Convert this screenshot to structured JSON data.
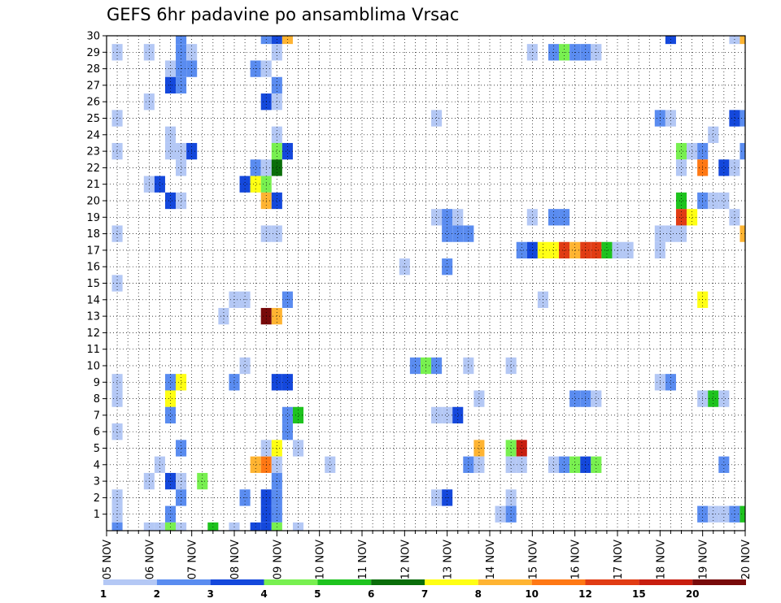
{
  "chart_data": {
    "type": "heatmap",
    "title": "GEFS 6hr padavine po ansamblima Vrsac",
    "xlabel": "",
    "ylabel": "",
    "x_ticks": [
      "05 NOV",
      "06 NOV",
      "07 NOV",
      "08 NOV",
      "09 NOV",
      "10 NOV",
      "11 NOV",
      "12 NOV",
      "13 NOV",
      "14 NOV",
      "15 NOV",
      "16 NOV",
      "17 NOV",
      "18 NOV",
      "19 NOV",
      "20 NOV"
    ],
    "y_ticks": [
      "1",
      "2",
      "3",
      "4",
      "5",
      "6",
      "7",
      "8",
      "9",
      "10",
      "11",
      "12",
      "13",
      "14",
      "15",
      "16",
      "17",
      "18",
      "19",
      "20",
      "21",
      "22",
      "23",
      "24",
      "25",
      "26",
      "27",
      "28",
      "29",
      "30"
    ],
    "x_range": [
      "05 NOV 00Z",
      "20 NOV 00Z"
    ],
    "x_step": "6hr",
    "y_range": [
      0,
      30
    ],
    "grid": true,
    "colorbar": {
      "position": "bottom",
      "labels": [
        "1",
        "2",
        "3",
        "4",
        "5",
        "6",
        "7",
        "8",
        "10",
        "12",
        "15",
        "20"
      ],
      "colors": [
        "#b4c8f5",
        "#5a8cf0",
        "#1448dc",
        "#78f050",
        "#1ec31e",
        "#0a6e0a",
        "#ffff14",
        "#ffb432",
        "#ff7814",
        "#e13c14",
        "#c81e0f",
        "#780a0a"
      ]
    },
    "cells": [
      {
        "member": 30,
        "t": "06 NOV 18Z",
        "color": "#5a8cf0"
      },
      {
        "member": 30,
        "t": "08 NOV 18Z",
        "color": "#5a8cf0"
      },
      {
        "member": 30,
        "t": "09 NOV 00Z",
        "color": "#1448dc"
      },
      {
        "member": 30,
        "t": "09 NOV 06Z",
        "color": "#ffb432"
      },
      {
        "member": 30,
        "t": "18 NOV 06Z",
        "color": "#1448dc"
      },
      {
        "member": 30,
        "t": "19 NOV 18Z",
        "color": "#b4c8f5"
      },
      {
        "member": 30,
        "t": "20 NOV 00Z",
        "color": "#ffb432"
      },
      {
        "member": 29,
        "t": "05 NOV 06Z",
        "color": "#b4c8f5"
      },
      {
        "member": 29,
        "t": "06 NOV 00Z",
        "color": "#b4c8f5"
      },
      {
        "member": 29,
        "t": "06 NOV 18Z",
        "color": "#5a8cf0"
      },
      {
        "member": 29,
        "t": "07 NOV 00Z",
        "color": "#b4c8f5"
      },
      {
        "member": 29,
        "t": "09 NOV 00Z",
        "color": "#b4c8f5"
      },
      {
        "member": 29,
        "t": "15 NOV 00Z",
        "color": "#b4c8f5"
      },
      {
        "member": 29,
        "t": "15 NOV 12Z",
        "color": "#5a8cf0"
      },
      {
        "member": 29,
        "t": "15 NOV 18Z",
        "color": "#78f050"
      },
      {
        "member": 29,
        "t": "16 NOV 00Z",
        "color": "#5a8cf0"
      },
      {
        "member": 29,
        "t": "16 NOV 06Z",
        "color": "#5a8cf0"
      },
      {
        "member": 29,
        "t": "16 NOV 12Z",
        "color": "#b4c8f5"
      },
      {
        "member": 28,
        "t": "06 NOV 12Z",
        "color": "#b4c8f5"
      },
      {
        "member": 28,
        "t": "06 NOV 18Z",
        "color": "#5a8cf0"
      },
      {
        "member": 28,
        "t": "07 NOV 00Z",
        "color": "#5a8cf0"
      },
      {
        "member": 28,
        "t": "08 NOV 12Z",
        "color": "#5a8cf0"
      },
      {
        "member": 28,
        "t": "08 NOV 18Z",
        "color": "#b4c8f5"
      },
      {
        "member": 27,
        "t": "06 NOV 12Z",
        "color": "#1448dc"
      },
      {
        "member": 27,
        "t": "06 NOV 18Z",
        "color": "#5a8cf0"
      },
      {
        "member": 27,
        "t": "09 NOV 00Z",
        "color": "#5a8cf0"
      },
      {
        "member": 26,
        "t": "06 NOV 00Z",
        "color": "#b4c8f5"
      },
      {
        "member": 26,
        "t": "08 NOV 18Z",
        "color": "#1448dc"
      },
      {
        "member": 26,
        "t": "09 NOV 00Z",
        "color": "#b4c8f5"
      },
      {
        "member": 25,
        "t": "05 NOV 06Z",
        "color": "#b4c8f5"
      },
      {
        "member": 25,
        "t": "12 NOV 18Z",
        "color": "#b4c8f5"
      },
      {
        "member": 25,
        "t": "18 NOV 00Z",
        "color": "#5a8cf0"
      },
      {
        "member": 25,
        "t": "18 NOV 06Z",
        "color": "#b4c8f5"
      },
      {
        "member": 25,
        "t": "19 NOV 18Z",
        "color": "#1448dc"
      },
      {
        "member": 25,
        "t": "20 NOV 00Z",
        "color": "#5a8cf0"
      },
      {
        "member": 24,
        "t": "06 NOV 12Z",
        "color": "#b4c8f5"
      },
      {
        "member": 24,
        "t": "09 NOV 00Z",
        "color": "#b4c8f5"
      },
      {
        "member": 24,
        "t": "19 NOV 06Z",
        "color": "#b4c8f5"
      },
      {
        "member": 23,
        "t": "05 NOV 06Z",
        "color": "#b4c8f5"
      },
      {
        "member": 23,
        "t": "06 NOV 12Z",
        "color": "#b4c8f5"
      },
      {
        "member": 23,
        "t": "06 NOV 18Z",
        "color": "#b4c8f5"
      },
      {
        "member": 23,
        "t": "07 NOV 00Z",
        "color": "#1448dc"
      },
      {
        "member": 23,
        "t": "09 NOV 00Z",
        "color": "#78f050"
      },
      {
        "member": 23,
        "t": "09 NOV 06Z",
        "color": "#1448dc"
      },
      {
        "member": 23,
        "t": "18 NOV 12Z",
        "color": "#78f050"
      },
      {
        "member": 23,
        "t": "18 NOV 18Z",
        "color": "#b4c8f5"
      },
      {
        "member": 23,
        "t": "19 NOV 00Z",
        "color": "#5a8cf0"
      },
      {
        "member": 23,
        "t": "20 NOV 00Z",
        "color": "#5a8cf0"
      },
      {
        "member": 22,
        "t": "06 NOV 18Z",
        "color": "#b4c8f5"
      },
      {
        "member": 22,
        "t": "08 NOV 12Z",
        "color": "#5a8cf0"
      },
      {
        "member": 22,
        "t": "08 NOV 18Z",
        "color": "#b4c8f5"
      },
      {
        "member": 22,
        "t": "09 NOV 00Z",
        "color": "#0a6e0a"
      },
      {
        "member": 22,
        "t": "18 NOV 12Z",
        "color": "#b4c8f5"
      },
      {
        "member": 22,
        "t": "19 NOV 00Z",
        "color": "#ff7814"
      },
      {
        "member": 22,
        "t": "19 NOV 12Z",
        "color": "#1448dc"
      },
      {
        "member": 22,
        "t": "19 NOV 18Z",
        "color": "#b4c8f5"
      },
      {
        "member": 21,
        "t": "06 NOV 00Z",
        "color": "#b4c8f5"
      },
      {
        "member": 21,
        "t": "06 NOV 06Z",
        "color": "#1448dc"
      },
      {
        "member": 21,
        "t": "08 NOV 06Z",
        "color": "#1448dc"
      },
      {
        "member": 21,
        "t": "08 NOV 12Z",
        "color": "#ffff14"
      },
      {
        "member": 21,
        "t": "08 NOV 18Z",
        "color": "#78f050"
      },
      {
        "member": 20,
        "t": "06 NOV 12Z",
        "color": "#1448dc"
      },
      {
        "member": 20,
        "t": "06 NOV 18Z",
        "color": "#b4c8f5"
      },
      {
        "member": 20,
        "t": "08 NOV 18Z",
        "color": "#ffb432"
      },
      {
        "member": 20,
        "t": "09 NOV 00Z",
        "color": "#1448dc"
      },
      {
        "member": 20,
        "t": "18 NOV 12Z",
        "color": "#1ec31e"
      },
      {
        "member": 20,
        "t": "19 NOV 00Z",
        "color": "#5a8cf0"
      },
      {
        "member": 20,
        "t": "19 NOV 06Z",
        "color": "#b4c8f5"
      },
      {
        "member": 20,
        "t": "19 NOV 12Z",
        "color": "#b4c8f5"
      },
      {
        "member": 19,
        "t": "12 NOV 18Z",
        "color": "#b4c8f5"
      },
      {
        "member": 19,
        "t": "13 NOV 00Z",
        "color": "#5a8cf0"
      },
      {
        "member": 19,
        "t": "13 NOV 06Z",
        "color": "#b4c8f5"
      },
      {
        "member": 19,
        "t": "15 NOV 00Z",
        "color": "#b4c8f5"
      },
      {
        "member": 19,
        "t": "15 NOV 12Z",
        "color": "#5a8cf0"
      },
      {
        "member": 19,
        "t": "15 NOV 18Z",
        "color": "#5a8cf0"
      },
      {
        "member": 19,
        "t": "18 NOV 12Z",
        "color": "#e13c14"
      },
      {
        "member": 19,
        "t": "18 NOV 18Z",
        "color": "#ffff14"
      },
      {
        "member": 19,
        "t": "19 NOV 18Z",
        "color": "#b4c8f5"
      },
      {
        "member": 18,
        "t": "05 NOV 06Z",
        "color": "#b4c8f5"
      },
      {
        "member": 18,
        "t": "08 NOV 18Z",
        "color": "#b4c8f5"
      },
      {
        "member": 18,
        "t": "09 NOV 00Z",
        "color": "#b4c8f5"
      },
      {
        "member": 18,
        "t": "13 NOV 00Z",
        "color": "#5a8cf0"
      },
      {
        "member": 18,
        "t": "13 NOV 06Z",
        "color": "#5a8cf0"
      },
      {
        "member": 18,
        "t": "13 NOV 12Z",
        "color": "#5a8cf0"
      },
      {
        "member": 18,
        "t": "18 NOV 00Z",
        "color": "#b4c8f5"
      },
      {
        "member": 18,
        "t": "18 NOV 06Z",
        "color": "#b4c8f5"
      },
      {
        "member": 18,
        "t": "18 NOV 12Z",
        "color": "#b4c8f5"
      },
      {
        "member": 18,
        "t": "20 NOV 00Z",
        "color": "#ffb432"
      },
      {
        "member": 17,
        "t": "14 NOV 18Z",
        "color": "#5a8cf0"
      },
      {
        "member": 17,
        "t": "15 NOV 00Z",
        "color": "#1448dc"
      },
      {
        "member": 17,
        "t": "15 NOV 06Z",
        "color": "#ffff14"
      },
      {
        "member": 17,
        "t": "15 NOV 12Z",
        "color": "#ffff14"
      },
      {
        "member": 17,
        "t": "15 NOV 18Z",
        "color": "#e13c14"
      },
      {
        "member": 17,
        "t": "16 NOV 00Z",
        "color": "#ffb432"
      },
      {
        "member": 17,
        "t": "16 NOV 06Z",
        "color": "#e13c14"
      },
      {
        "member": 17,
        "t": "16 NOV 12Z",
        "color": "#e13c14"
      },
      {
        "member": 17,
        "t": "16 NOV 18Z",
        "color": "#1ec31e"
      },
      {
        "member": 17,
        "t": "17 NOV 00Z",
        "color": "#b4c8f5"
      },
      {
        "member": 17,
        "t": "17 NOV 06Z",
        "color": "#b4c8f5"
      },
      {
        "member": 17,
        "t": "18 NOV 00Z",
        "color": "#b4c8f5"
      },
      {
        "member": 16,
        "t": "12 NOV 00Z",
        "color": "#b4c8f5"
      },
      {
        "member": 16,
        "t": "13 NOV 00Z",
        "color": "#5a8cf0"
      },
      {
        "member": 15,
        "t": "05 NOV 06Z",
        "color": "#b4c8f5"
      },
      {
        "member": 14,
        "t": "08 NOV 00Z",
        "color": "#b4c8f5"
      },
      {
        "member": 14,
        "t": "08 NOV 06Z",
        "color": "#b4c8f5"
      },
      {
        "member": 14,
        "t": "09 NOV 06Z",
        "color": "#5a8cf0"
      },
      {
        "member": 14,
        "t": "15 NOV 06Z",
        "color": "#b4c8f5"
      },
      {
        "member": 14,
        "t": "19 NOV 00Z",
        "color": "#ffff14"
      },
      {
        "member": 13,
        "t": "07 NOV 18Z",
        "color": "#b4c8f5"
      },
      {
        "member": 13,
        "t": "08 NOV 18Z",
        "color": "#780a0a"
      },
      {
        "member": 13,
        "t": "09 NOV 00Z",
        "color": "#ffb432"
      },
      {
        "member": 10,
        "t": "08 NOV 06Z",
        "color": "#b4c8f5"
      },
      {
        "member": 10,
        "t": "12 NOV 06Z",
        "color": "#5a8cf0"
      },
      {
        "member": 10,
        "t": "12 NOV 12Z",
        "color": "#78f050"
      },
      {
        "member": 10,
        "t": "12 NOV 18Z",
        "color": "#5a8cf0"
      },
      {
        "member": 10,
        "t": "13 NOV 12Z",
        "color": "#b4c8f5"
      },
      {
        "member": 10,
        "t": "14 NOV 12Z",
        "color": "#b4c8f5"
      },
      {
        "member": 9,
        "t": "05 NOV 06Z",
        "color": "#b4c8f5"
      },
      {
        "member": 9,
        "t": "06 NOV 12Z",
        "color": "#5a8cf0"
      },
      {
        "member": 9,
        "t": "06 NOV 18Z",
        "color": "#ffff14"
      },
      {
        "member": 9,
        "t": "08 NOV 00Z",
        "color": "#5a8cf0"
      },
      {
        "member": 9,
        "t": "09 NOV 00Z",
        "color": "#1448dc"
      },
      {
        "member": 9,
        "t": "09 NOV 06Z",
        "color": "#1448dc"
      },
      {
        "member": 9,
        "t": "18 NOV 00Z",
        "color": "#b4c8f5"
      },
      {
        "member": 9,
        "t": "18 NOV 06Z",
        "color": "#5a8cf0"
      },
      {
        "member": 8,
        "t": "05 NOV 06Z",
        "color": "#b4c8f5"
      },
      {
        "member": 8,
        "t": "06 NOV 12Z",
        "color": "#ffff14"
      },
      {
        "member": 8,
        "t": "13 NOV 18Z",
        "color": "#b4c8f5"
      },
      {
        "member": 8,
        "t": "16 NOV 00Z",
        "color": "#5a8cf0"
      },
      {
        "member": 8,
        "t": "16 NOV 06Z",
        "color": "#5a8cf0"
      },
      {
        "member": 8,
        "t": "16 NOV 12Z",
        "color": "#b4c8f5"
      },
      {
        "member": 8,
        "t": "19 NOV 00Z",
        "color": "#b4c8f5"
      },
      {
        "member": 8,
        "t": "19 NOV 06Z",
        "color": "#1ec31e"
      },
      {
        "member": 8,
        "t": "19 NOV 12Z",
        "color": "#b4c8f5"
      },
      {
        "member": 7,
        "t": "06 NOV 12Z",
        "color": "#5a8cf0"
      },
      {
        "member": 7,
        "t": "09 NOV 06Z",
        "color": "#5a8cf0"
      },
      {
        "member": 7,
        "t": "09 NOV 12Z",
        "color": "#1ec31e"
      },
      {
        "member": 7,
        "t": "12 NOV 18Z",
        "color": "#b4c8f5"
      },
      {
        "member": 7,
        "t": "13 NOV 00Z",
        "color": "#b4c8f5"
      },
      {
        "member": 7,
        "t": "13 NOV 06Z",
        "color": "#1448dc"
      },
      {
        "member": 6,
        "t": "05 NOV 06Z",
        "color": "#b4c8f5"
      },
      {
        "member": 6,
        "t": "09 NOV 06Z",
        "color": "#5a8cf0"
      },
      {
        "member": 5,
        "t": "06 NOV 18Z",
        "color": "#5a8cf0"
      },
      {
        "member": 5,
        "t": "08 NOV 18Z",
        "color": "#b4c8f5"
      },
      {
        "member": 5,
        "t": "09 NOV 00Z",
        "color": "#ffff14"
      },
      {
        "member": 5,
        "t": "09 NOV 12Z",
        "color": "#b4c8f5"
      },
      {
        "member": 5,
        "t": "13 NOV 18Z",
        "color": "#ffb432"
      },
      {
        "member": 5,
        "t": "14 NOV 12Z",
        "color": "#78f050"
      },
      {
        "member": 5,
        "t": "14 NOV 18Z",
        "color": "#c81e0f"
      },
      {
        "member": 4,
        "t": "06 NOV 06Z",
        "color": "#b4c8f5"
      },
      {
        "member": 4,
        "t": "08 NOV 12Z",
        "color": "#ffb432"
      },
      {
        "member": 4,
        "t": "08 NOV 18Z",
        "color": "#ff7814"
      },
      {
        "member": 4,
        "t": "09 NOV 00Z",
        "color": "#b4c8f5"
      },
      {
        "member": 4,
        "t": "10 NOV 06Z",
        "color": "#b4c8f5"
      },
      {
        "member": 4,
        "t": "13 NOV 12Z",
        "color": "#5a8cf0"
      },
      {
        "member": 4,
        "t": "13 NOV 18Z",
        "color": "#b4c8f5"
      },
      {
        "member": 4,
        "t": "14 NOV 12Z",
        "color": "#b4c8f5"
      },
      {
        "member": 4,
        "t": "14 NOV 18Z",
        "color": "#b4c8f5"
      },
      {
        "member": 4,
        "t": "15 NOV 12Z",
        "color": "#b4c8f5"
      },
      {
        "member": 4,
        "t": "15 NOV 18Z",
        "color": "#5a8cf0"
      },
      {
        "member": 4,
        "t": "16 NOV 00Z",
        "color": "#78f050"
      },
      {
        "member": 4,
        "t": "16 NOV 06Z",
        "color": "#1448dc"
      },
      {
        "member": 4,
        "t": "16 NOV 12Z",
        "color": "#78f050"
      },
      {
        "member": 4,
        "t": "19 NOV 12Z",
        "color": "#5a8cf0"
      },
      {
        "member": 3,
        "t": "06 NOV 00Z",
        "color": "#b4c8f5"
      },
      {
        "member": 3,
        "t": "06 NOV 12Z",
        "color": "#1448dc"
      },
      {
        "member": 3,
        "t": "06 NOV 18Z",
        "color": "#b4c8f5"
      },
      {
        "member": 3,
        "t": "07 NOV 06Z",
        "color": "#78f050"
      },
      {
        "member": 3,
        "t": "09 NOV 00Z",
        "color": "#5a8cf0"
      },
      {
        "member": 2,
        "t": "05 NOV 06Z",
        "color": "#b4c8f5"
      },
      {
        "member": 2,
        "t": "06 NOV 18Z",
        "color": "#5a8cf0"
      },
      {
        "member": 2,
        "t": "08 NOV 06Z",
        "color": "#5a8cf0"
      },
      {
        "member": 2,
        "t": "08 NOV 18Z",
        "color": "#1448dc"
      },
      {
        "member": 2,
        "t": "09 NOV 00Z",
        "color": "#5a8cf0"
      },
      {
        "member": 2,
        "t": "12 NOV 18Z",
        "color": "#b4c8f5"
      },
      {
        "member": 2,
        "t": "13 NOV 00Z",
        "color": "#1448dc"
      },
      {
        "member": 2,
        "t": "14 NOV 12Z",
        "color": "#b4c8f5"
      },
      {
        "member": 1,
        "t": "05 NOV 06Z",
        "color": "#b4c8f5"
      },
      {
        "member": 1,
        "t": "06 NOV 12Z",
        "color": "#5a8cf0"
      },
      {
        "member": 1,
        "t": "08 NOV 18Z",
        "color": "#1448dc"
      },
      {
        "member": 1,
        "t": "09 NOV 00Z",
        "color": "#5a8cf0"
      },
      {
        "member": 1,
        "t": "14 NOV 06Z",
        "color": "#b4c8f5"
      },
      {
        "member": 1,
        "t": "14 NOV 12Z",
        "color": "#5a8cf0"
      },
      {
        "member": 1,
        "t": "19 NOV 00Z",
        "color": "#5a8cf0"
      },
      {
        "member": 1,
        "t": "19 NOV 06Z",
        "color": "#b4c8f5"
      },
      {
        "member": 1,
        "t": "19 NOV 12Z",
        "color": "#b4c8f5"
      },
      {
        "member": 1,
        "t": "19 NOV 18Z",
        "color": "#5a8cf0"
      },
      {
        "member": 1,
        "t": "20 NOV 00Z",
        "color": "#1ec31e"
      },
      {
        "member": 0,
        "t": "05 NOV 06Z",
        "color": "#5a8cf0"
      },
      {
        "member": 0,
        "t": "06 NOV 00Z",
        "color": "#b4c8f5"
      },
      {
        "member": 0,
        "t": "06 NOV 06Z",
        "color": "#b4c8f5"
      },
      {
        "member": 0,
        "t": "06 NOV 12Z",
        "color": "#78f050"
      },
      {
        "member": 0,
        "t": "06 NOV 18Z",
        "color": "#b4c8f5"
      },
      {
        "member": 0,
        "t": "07 NOV 12Z",
        "color": "#1ec31e"
      },
      {
        "member": 0,
        "t": "08 NOV 00Z",
        "color": "#b4c8f5"
      },
      {
        "member": 0,
        "t": "08 NOV 12Z",
        "color": "#1448dc"
      },
      {
        "member": 0,
        "t": "08 NOV 18Z",
        "color": "#1448dc"
      },
      {
        "member": 0,
        "t": "09 NOV 00Z",
        "color": "#78f050"
      },
      {
        "member": 0,
        "t": "09 NOV 12Z",
        "color": "#b4c8f5"
      }
    ]
  }
}
